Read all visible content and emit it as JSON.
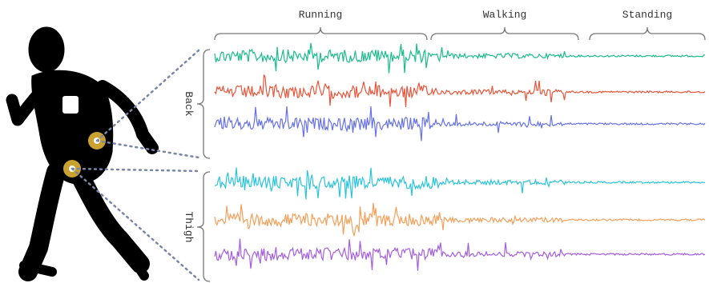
{
  "activities": [
    "Running",
    "Walking",
    "Standing"
  ],
  "sensors": [
    "Back",
    "Thigh"
  ]
}
